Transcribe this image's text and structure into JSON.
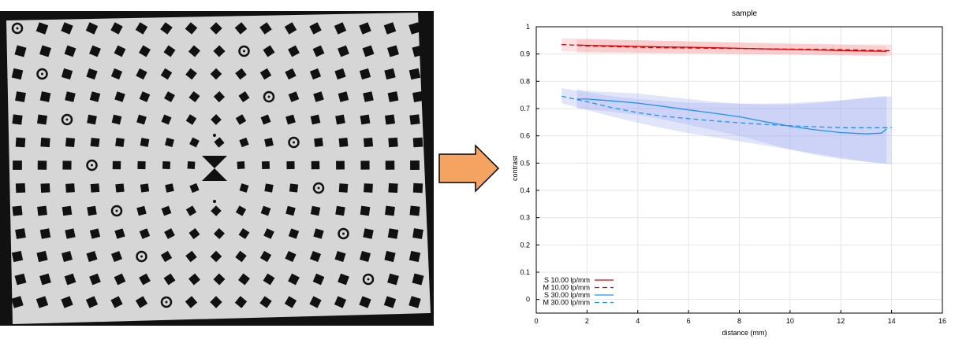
{
  "photo": {
    "description_icon": "calibration-target-photo"
  },
  "arrow": {
    "color": "#F4A460",
    "icon": "arrow-right-icon"
  },
  "chart_data": {
    "type": "line",
    "title": "sample",
    "xlabel": "distance (mm)",
    "ylabel": "contrast",
    "xlim": [
      0,
      16
    ],
    "ylim": [
      -0.05,
      1
    ],
    "x_ticks": [
      0,
      2,
      4,
      6,
      8,
      10,
      12,
      14,
      16
    ],
    "y_ticks": [
      0,
      0.1,
      0.2,
      0.3,
      0.4,
      0.5,
      0.6,
      0.7,
      0.8,
      0.9,
      1
    ],
    "grid": true,
    "legend_position": "bottom-left",
    "series": [
      {
        "name": "S 10.00 lp/mm",
        "style": "solid",
        "color": "#DD0000",
        "x": [
          1.6,
          2,
          3,
          4,
          5,
          6,
          7,
          8,
          9,
          10,
          11,
          12,
          13,
          13.8
        ],
        "y": [
          0.933,
          0.932,
          0.93,
          0.928,
          0.926,
          0.925,
          0.923,
          0.921,
          0.919,
          0.917,
          0.915,
          0.913,
          0.911,
          0.91
        ],
        "band_lo": [
          0.905,
          0.905,
          0.905,
          0.904,
          0.903,
          0.902,
          0.901,
          0.9,
          0.899,
          0.898,
          0.896,
          0.895,
          0.893,
          0.892
        ],
        "band_hi": [
          0.955,
          0.955,
          0.953,
          0.951,
          0.949,
          0.947,
          0.945,
          0.942,
          0.94,
          0.938,
          0.936,
          0.934,
          0.932,
          0.93
        ]
      },
      {
        "name": "M 10.00 lp/mm",
        "style": "dashed",
        "color": "#DD0000",
        "x": [
          1,
          2,
          3,
          4,
          5,
          6,
          7,
          8,
          9,
          10,
          11,
          12,
          13,
          14
        ],
        "y": [
          0.935,
          0.93,
          0.927,
          0.925,
          0.923,
          0.922,
          0.921,
          0.92,
          0.919,
          0.918,
          0.917,
          0.916,
          0.914,
          0.912
        ],
        "band_lo": [
          0.91,
          0.908,
          0.906,
          0.905,
          0.904,
          0.903,
          0.902,
          0.9,
          0.899,
          0.898,
          0.897,
          0.896,
          0.895,
          0.894
        ],
        "band_hi": [
          0.958,
          0.955,
          0.952,
          0.95,
          0.948,
          0.946,
          0.944,
          0.942,
          0.94,
          0.938,
          0.937,
          0.936,
          0.935,
          0.934
        ]
      },
      {
        "name": "S 30.00 lp/mm",
        "style": "solid",
        "color": "#1E90FF",
        "x": [
          1.6,
          2,
          3,
          4,
          5,
          6,
          7,
          8,
          9,
          10,
          11,
          12,
          13,
          13.6,
          13.8
        ],
        "y": [
          0.735,
          0.735,
          0.728,
          0.72,
          0.708,
          0.695,
          0.683,
          0.67,
          0.652,
          0.635,
          0.622,
          0.612,
          0.607,
          0.61,
          0.625
        ],
        "band_lo": [
          0.7,
          0.698,
          0.688,
          0.677,
          0.66,
          0.64,
          0.62,
          0.6,
          0.575,
          0.55,
          0.53,
          0.515,
          0.505,
          0.5,
          0.5
        ],
        "band_hi": [
          0.77,
          0.765,
          0.76,
          0.755,
          0.745,
          0.735,
          0.725,
          0.718,
          0.715,
          0.715,
          0.72,
          0.73,
          0.74,
          0.745,
          0.745
        ]
      },
      {
        "name": "M 30.00 lp/mm",
        "style": "dashed",
        "color": "#1E90FF",
        "x": [
          1,
          2,
          3,
          4,
          5,
          6,
          7,
          8,
          9,
          10,
          11,
          12,
          13,
          14
        ],
        "y": [
          0.745,
          0.725,
          0.703,
          0.685,
          0.672,
          0.663,
          0.655,
          0.648,
          0.642,
          0.637,
          0.633,
          0.63,
          0.63,
          0.63
        ],
        "band_lo": [
          0.72,
          0.695,
          0.67,
          0.648,
          0.628,
          0.61,
          0.595,
          0.58,
          0.565,
          0.55,
          0.535,
          0.52,
          0.505,
          0.495
        ],
        "band_hi": [
          0.775,
          0.76,
          0.745,
          0.735,
          0.728,
          0.722,
          0.72,
          0.718,
          0.718,
          0.72,
          0.725,
          0.73,
          0.738,
          0.745
        ]
      }
    ]
  }
}
